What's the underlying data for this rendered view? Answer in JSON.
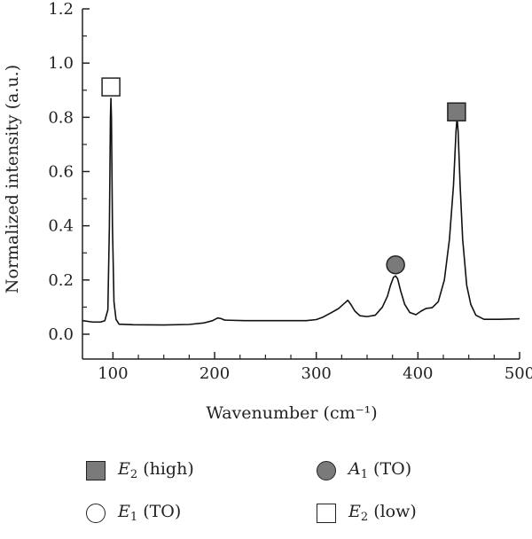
{
  "chart_data": {
    "type": "line",
    "xlabel": "Wavenumber (cm⁻¹)",
    "ylabel": "Normalized intensity (a.u.)",
    "xlim": [
      70,
      500
    ],
    "ylim": [
      0,
      1.2
    ],
    "xticks": [
      100,
      200,
      300,
      400,
      500
    ],
    "yticks": [
      0.0,
      0.2,
      0.4,
      0.6,
      0.8,
      1.0,
      1.2
    ],
    "ytick_labels": [
      "0.0",
      "0.2",
      "0.4",
      "0.6",
      "0.8",
      "1.0",
      "1.2"
    ],
    "grid": false,
    "series": [
      {
        "values_xy": [
          [
            70,
            0.05
          ],
          [
            80,
            0.045
          ],
          [
            88,
            0.045
          ],
          [
            92,
            0.05
          ],
          [
            95,
            0.09
          ],
          [
            96.5,
            0.4
          ],
          [
            97.5,
            0.8
          ],
          [
            98,
            0.87
          ],
          [
            98.5,
            0.8
          ],
          [
            99.5,
            0.4
          ],
          [
            101,
            0.12
          ],
          [
            103,
            0.055
          ],
          [
            106,
            0.037
          ],
          [
            120,
            0.035
          ],
          [
            150,
            0.034
          ],
          [
            175,
            0.036
          ],
          [
            190,
            0.042
          ],
          [
            198,
            0.05
          ],
          [
            203,
            0.06
          ],
          [
            206,
            0.058
          ],
          [
            210,
            0.052
          ],
          [
            230,
            0.05
          ],
          [
            260,
            0.05
          ],
          [
            290,
            0.05
          ],
          [
            300,
            0.054
          ],
          [
            306,
            0.062
          ],
          [
            315,
            0.08
          ],
          [
            322,
            0.095
          ],
          [
            328,
            0.115
          ],
          [
            331,
            0.125
          ],
          [
            334,
            0.11
          ],
          [
            338,
            0.085
          ],
          [
            343,
            0.068
          ],
          [
            350,
            0.065
          ],
          [
            358,
            0.07
          ],
          [
            365,
            0.1
          ],
          [
            370,
            0.14
          ],
          [
            373,
            0.18
          ],
          [
            376,
            0.21
          ],
          [
            378,
            0.215
          ],
          [
            380,
            0.205
          ],
          [
            383,
            0.16
          ],
          [
            387,
            0.11
          ],
          [
            392,
            0.08
          ],
          [
            398,
            0.072
          ],
          [
            403,
            0.085
          ],
          [
            408,
            0.095
          ],
          [
            414,
            0.098
          ],
          [
            420,
            0.12
          ],
          [
            426,
            0.2
          ],
          [
            431,
            0.35
          ],
          [
            435,
            0.55
          ],
          [
            437.5,
            0.75
          ],
          [
            438.5,
            0.8
          ],
          [
            439.5,
            0.75
          ],
          [
            441.5,
            0.55
          ],
          [
            444,
            0.35
          ],
          [
            448,
            0.18
          ],
          [
            452,
            0.11
          ],
          [
            457,
            0.07
          ],
          [
            465,
            0.055
          ],
          [
            480,
            0.055
          ],
          [
            500,
            0.057
          ]
        ]
      }
    ],
    "markers": [
      {
        "symbol": "square-white",
        "x": 98,
        "y": 0.912
      },
      {
        "symbol": "circle-gray",
        "x": 378,
        "y": 0.256
      },
      {
        "symbol": "square-gray",
        "x": 438,
        "y": 0.82
      }
    ],
    "legend": [
      {
        "symbol": "square-gray",
        "label": "E2 (high)",
        "main": "E",
        "sub": "2",
        "rest": " (high)"
      },
      {
        "symbol": "circle-gray",
        "label": "A1 (TO)",
        "main": "A",
        "sub": "1",
        "rest": " (TO)"
      },
      {
        "symbol": "circle-white",
        "label": "E1 (TO)",
        "main": "E",
        "sub": "1",
        "rest": " (TO)"
      },
      {
        "symbol": "square-white",
        "label": "E2 (low)",
        "main": "E",
        "sub": "2",
        "rest": " (low)"
      }
    ],
    "legend_placement": "bottom"
  },
  "colors": {
    "line": "#111111",
    "marker_gray": "#7a7a7a",
    "marker_white": "#ffffff",
    "axis": "#222222"
  }
}
